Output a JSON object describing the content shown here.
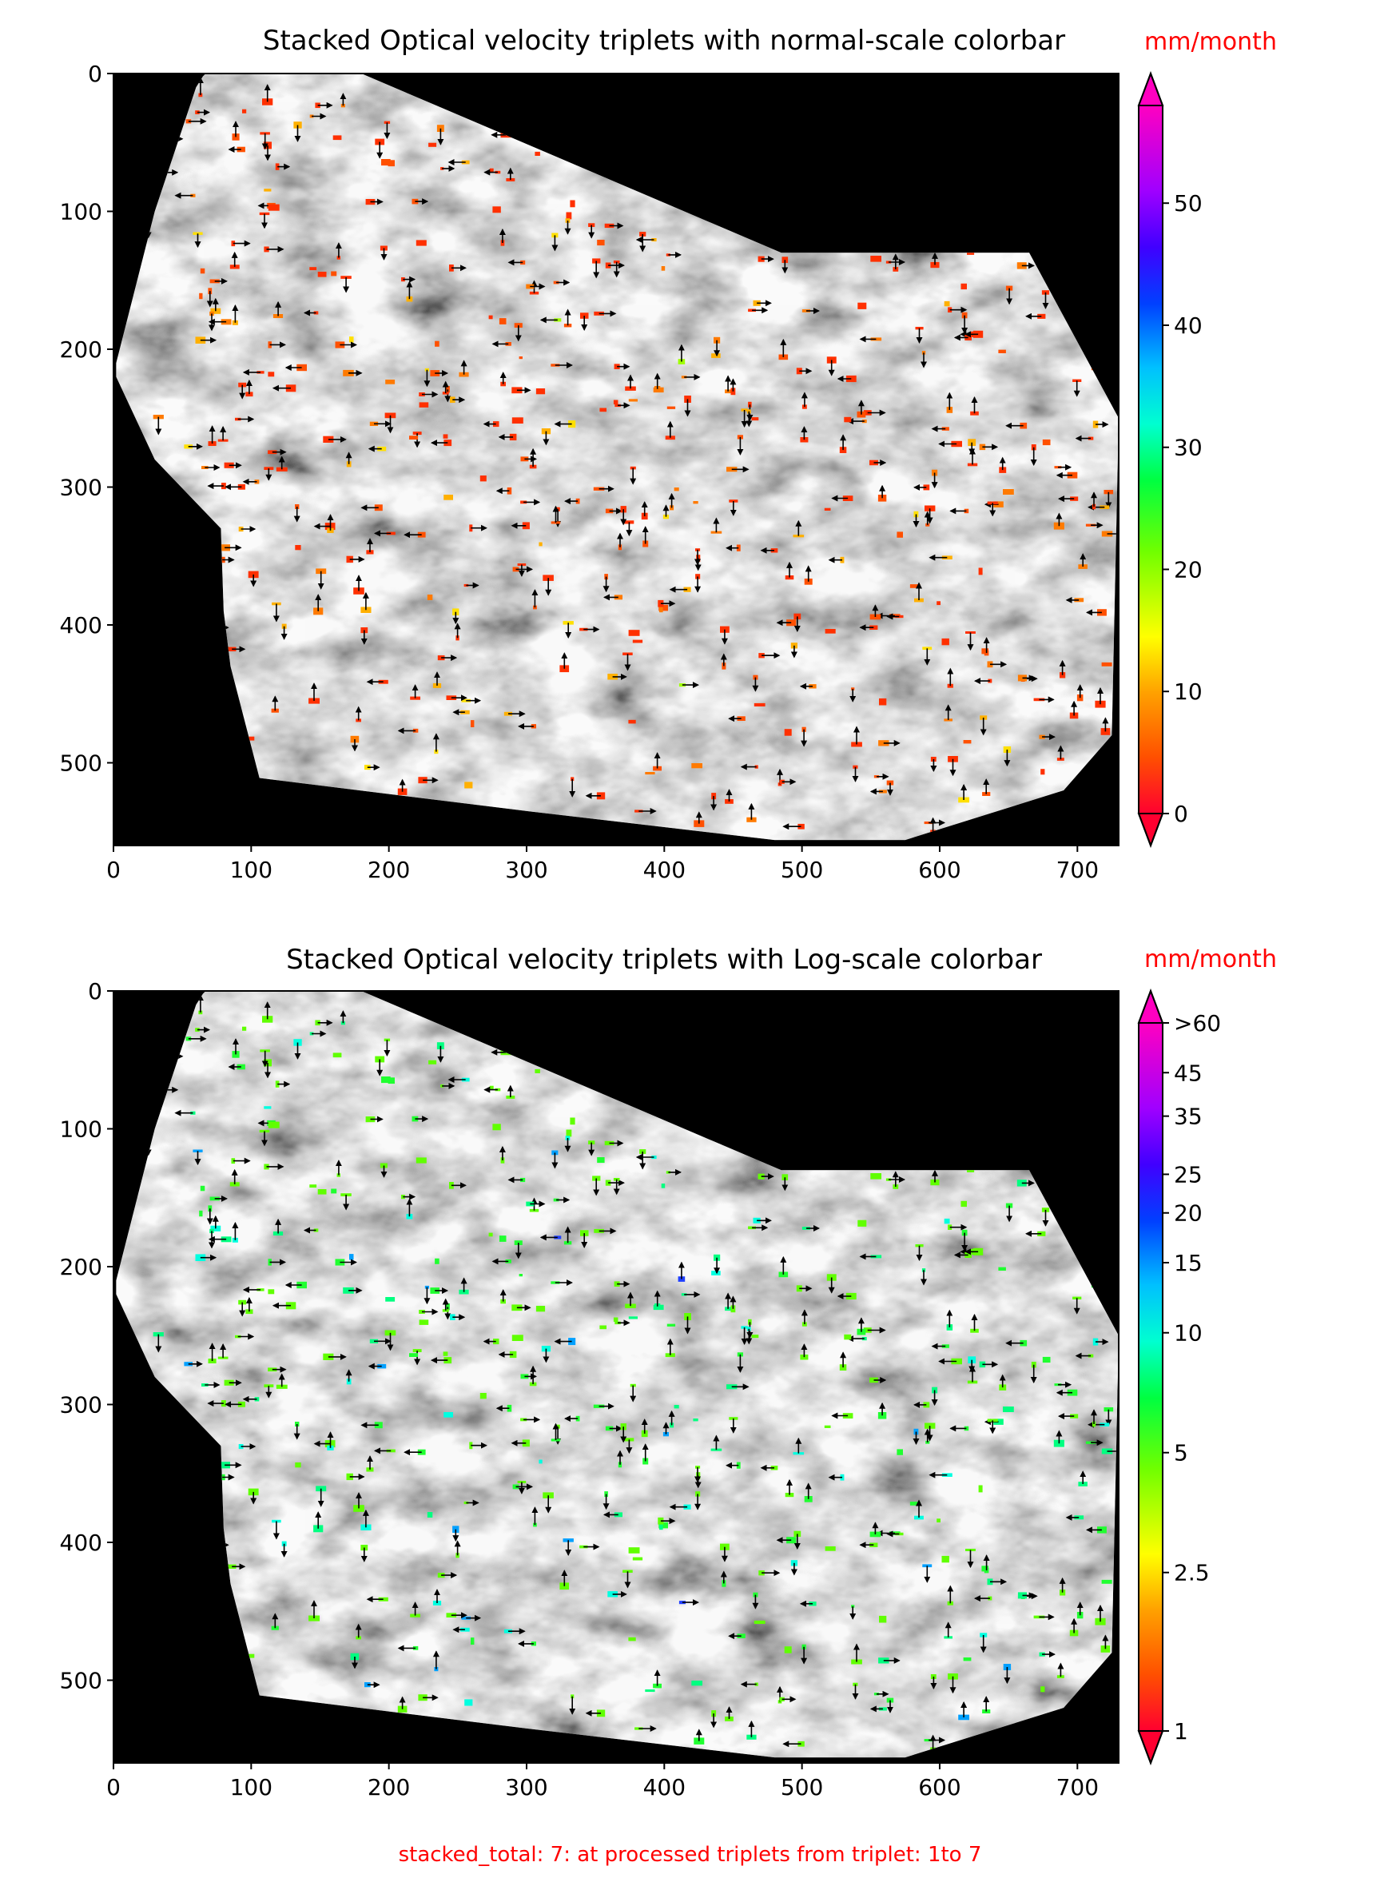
{
  "footer": "stacked_total: 7: at processed triplets from triplet: 1to 7",
  "chart_data": [
    {
      "type": "heatmap",
      "title": "Stacked Optical velocity triplets with normal-scale colorbar",
      "colorbar_label": "mm/month",
      "xlim": [
        0,
        730
      ],
      "ylim": [
        560,
        0
      ],
      "x_ticks": [
        "0",
        "100",
        "200",
        "300",
        "400",
        "500",
        "600",
        "700"
      ],
      "y_ticks": [
        "0",
        "100",
        "200",
        "300",
        "400",
        "500"
      ],
      "colorbar": {
        "scale": "linear",
        "range": [
          0,
          58
        ],
        "extend": "both",
        "ticks": [
          {
            "value": 0,
            "label": "0"
          },
          {
            "value": 10,
            "label": "10"
          },
          {
            "value": 20,
            "label": "20"
          },
          {
            "value": 30,
            "label": "30"
          },
          {
            "value": 40,
            "label": "40"
          },
          {
            "value": 50,
            "label": "50"
          }
        ]
      },
      "overlay": "velocity direction arrows"
    },
    {
      "type": "heatmap",
      "title": "Stacked Optical velocity triplets with Log-scale colorbar",
      "colorbar_label": "mm/month",
      "xlim": [
        0,
        730
      ],
      "ylim": [
        560,
        0
      ],
      "x_ticks": [
        "0",
        "100",
        "200",
        "300",
        "400",
        "500",
        "600",
        "700"
      ],
      "y_ticks": [
        "0",
        "100",
        "200",
        "300",
        "400",
        "500"
      ],
      "colorbar": {
        "scale": "log",
        "range": [
          1,
          60
        ],
        "extend": "both",
        "ticks": [
          {
            "value": 1,
            "label": "1"
          },
          {
            "value": 2.5,
            "label": "2.5"
          },
          {
            "value": 5,
            "label": "5"
          },
          {
            "value": 10,
            "label": "10"
          },
          {
            "value": 15,
            "label": "15"
          },
          {
            "value": 20,
            "label": "20"
          },
          {
            "value": 25,
            "label": "25"
          },
          {
            "value": 35,
            "label": "35"
          },
          {
            "value": 45,
            "label": "45"
          },
          {
            "value": 60,
            "label": ">60"
          }
        ]
      },
      "overlay": "velocity direction arrows"
    }
  ]
}
